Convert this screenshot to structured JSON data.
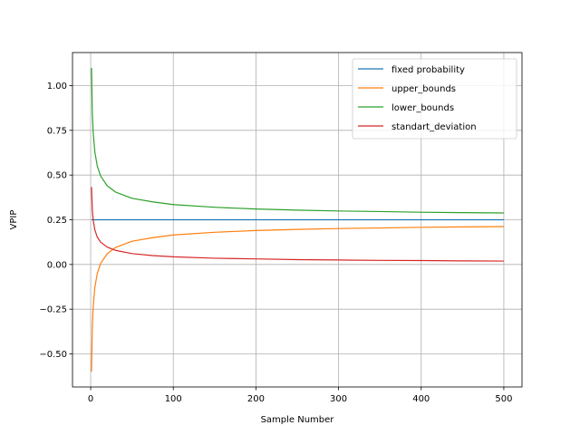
{
  "chart_data": {
    "type": "line",
    "title": "",
    "xlabel": "Sample Number",
    "ylabel": "VPIP",
    "xlim": [
      -22,
      522
    ],
    "ylim": [
      -0.685,
      1.185
    ],
    "xticks": [
      0,
      100,
      200,
      300,
      400,
      500
    ],
    "yticks": [
      -0.5,
      -0.25,
      0.0,
      0.25,
      0.5,
      0.75,
      1.0
    ],
    "xtick_labels": [
      "0",
      "100",
      "200",
      "300",
      "400",
      "500"
    ],
    "ytick_labels": [
      "−0.50",
      "−0.25",
      "0.00",
      "0.25",
      "0.50",
      "0.75",
      "1.00"
    ],
    "grid": true,
    "legend_position": "top-right",
    "x": [
      1,
      2,
      3,
      5,
      8,
      12,
      20,
      30,
      50,
      75,
      100,
      150,
      200,
      250,
      300,
      350,
      400,
      450,
      500
    ],
    "series": [
      {
        "name": "fixed probability",
        "color": "#1f77b4",
        "values": [
          0.25,
          0.25,
          0.25,
          0.25,
          0.25,
          0.25,
          0.25,
          0.25,
          0.25,
          0.25,
          0.25,
          0.25,
          0.25,
          0.25,
          0.25,
          0.25,
          0.25,
          0.25,
          0.25
        ]
      },
      {
        "name": "upper_bounds",
        "color": "#ff7f0e",
        "values": [
          -0.599,
          -0.35,
          -0.24,
          -0.13,
          -0.05,
          0.005,
          0.06,
          0.095,
          0.13,
          0.15,
          0.165,
          0.18,
          0.19,
          0.196,
          0.201,
          0.204,
          0.208,
          0.21,
          0.212
        ]
      },
      {
        "name": "lower_bounds",
        "color": "#2ca02c",
        "values": [
          1.099,
          0.85,
          0.74,
          0.63,
          0.55,
          0.495,
          0.44,
          0.405,
          0.37,
          0.35,
          0.335,
          0.32,
          0.31,
          0.304,
          0.299,
          0.296,
          0.292,
          0.29,
          0.288
        ]
      },
      {
        "name": "standart_deviation",
        "color": "#d62728",
        "values": [
          0.433,
          0.306,
          0.25,
          0.194,
          0.153,
          0.125,
          0.097,
          0.079,
          0.061,
          0.05,
          0.043,
          0.035,
          0.031,
          0.027,
          0.025,
          0.023,
          0.022,
          0.02,
          0.019
        ]
      }
    ]
  }
}
